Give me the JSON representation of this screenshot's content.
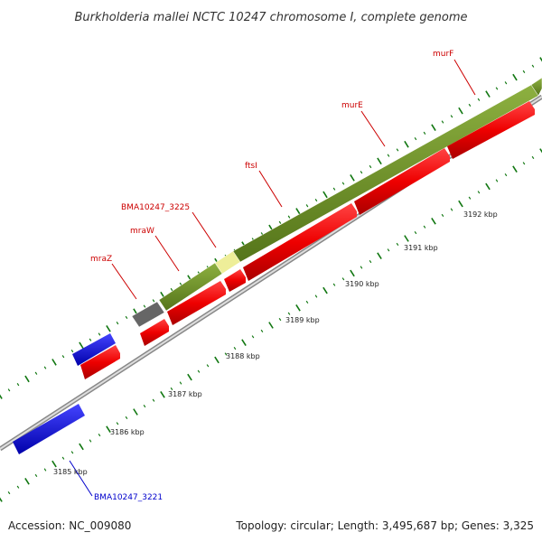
{
  "title": "Burkholderia mallei NCTC 10247 chromosome I, complete genome",
  "footer": {
    "accession": "Accession: NC_009080",
    "summary": "Topology: circular; Length: 3,495,687 bp; Genes: 3,325"
  },
  "colors": {
    "backbone": "#999999",
    "cds": "#ee0000",
    "gene_forward": "#6b8e23",
    "gene_unknown": "#666666",
    "gene_highlight": "#eeee99",
    "gene_reverse": "#0000ee",
    "tick": "#117711",
    "label_red": "#cc0000",
    "label_blue": "#0000cc"
  },
  "kbp_labels": [
    "3185 kbp",
    "3186 kbp",
    "3187 kbp",
    "3188 kbp",
    "3189 kbp",
    "3190 kbp",
    "3191 kbp",
    "3192 kbp"
  ],
  "gene_labels": [
    {
      "text": "murF",
      "color": "red"
    },
    {
      "text": "murE",
      "color": "red"
    },
    {
      "text": "ftsI",
      "color": "red"
    },
    {
      "text": "BMA10247_3225",
      "color": "red"
    },
    {
      "text": "mraW",
      "color": "red"
    },
    {
      "text": "mraZ",
      "color": "red"
    },
    {
      "text": "BMA10247_3221",
      "color": "blue"
    }
  ]
}
